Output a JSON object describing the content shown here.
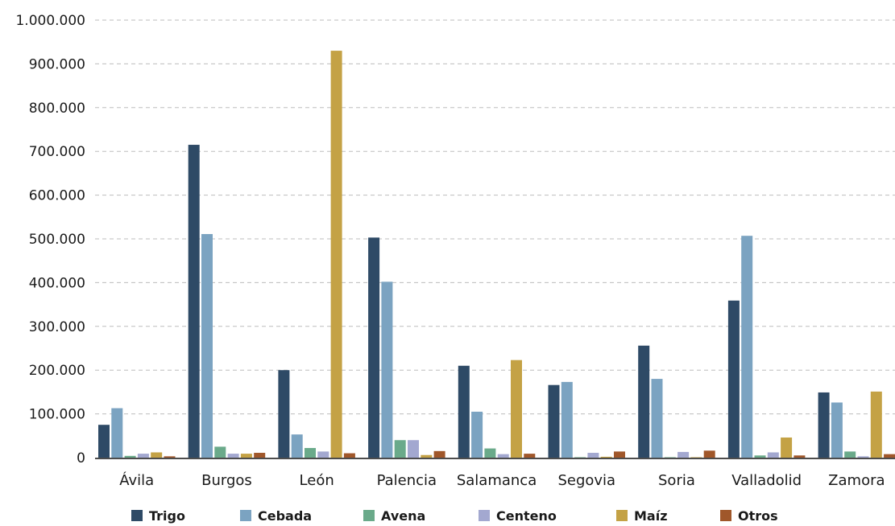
{
  "chart_data": {
    "type": "bar",
    "title": "",
    "xlabel": "",
    "ylabel": "",
    "ylim": [
      0,
      1000000
    ],
    "y_ticks": [
      0,
      100000,
      200000,
      300000,
      400000,
      500000,
      600000,
      700000,
      800000,
      900000,
      1000000
    ],
    "y_tick_labels": [
      "0",
      "100.000",
      "200.000",
      "300.000",
      "400.000",
      "500.000",
      "600.000",
      "700.000",
      "800.000",
      "900.000",
      "1.000.000"
    ],
    "grid": true,
    "legend_position": "bottom",
    "categories": [
      "Ávila",
      "Burgos",
      "León",
      "Palencia",
      "Salamanca",
      "Segovia",
      "Soria",
      "Valladolid",
      "Zamora"
    ],
    "series": [
      {
        "name": "Trigo",
        "color": "#2e4a66",
        "values": [
          75000,
          715000,
          200000,
          503000,
          210000,
          166000,
          256000,
          359000,
          149000
        ]
      },
      {
        "name": "Cebada",
        "color": "#7ba3c1",
        "values": [
          113000,
          511000,
          53000,
          402000,
          105000,
          173000,
          180000,
          507000,
          126000
        ]
      },
      {
        "name": "Avena",
        "color": "#6aaa8a",
        "values": [
          4000,
          25000,
          22000,
          40000,
          21000,
          1000,
          1000,
          5000,
          14000
        ]
      },
      {
        "name": "Centeno",
        "color": "#a3a8d0",
        "values": [
          9000,
          9000,
          14000,
          40000,
          8000,
          11000,
          13000,
          12000,
          3000
        ]
      },
      {
        "name": "Maíz",
        "color": "#c4a245",
        "values": [
          12000,
          9000,
          930000,
          6000,
          223000,
          2000,
          1000,
          46000,
          151000
        ]
      },
      {
        "name": "Otros",
        "color": "#a0572a",
        "values": [
          3000,
          11000,
          10000,
          15000,
          9000,
          14000,
          16000,
          5000,
          8000
        ]
      }
    ]
  }
}
